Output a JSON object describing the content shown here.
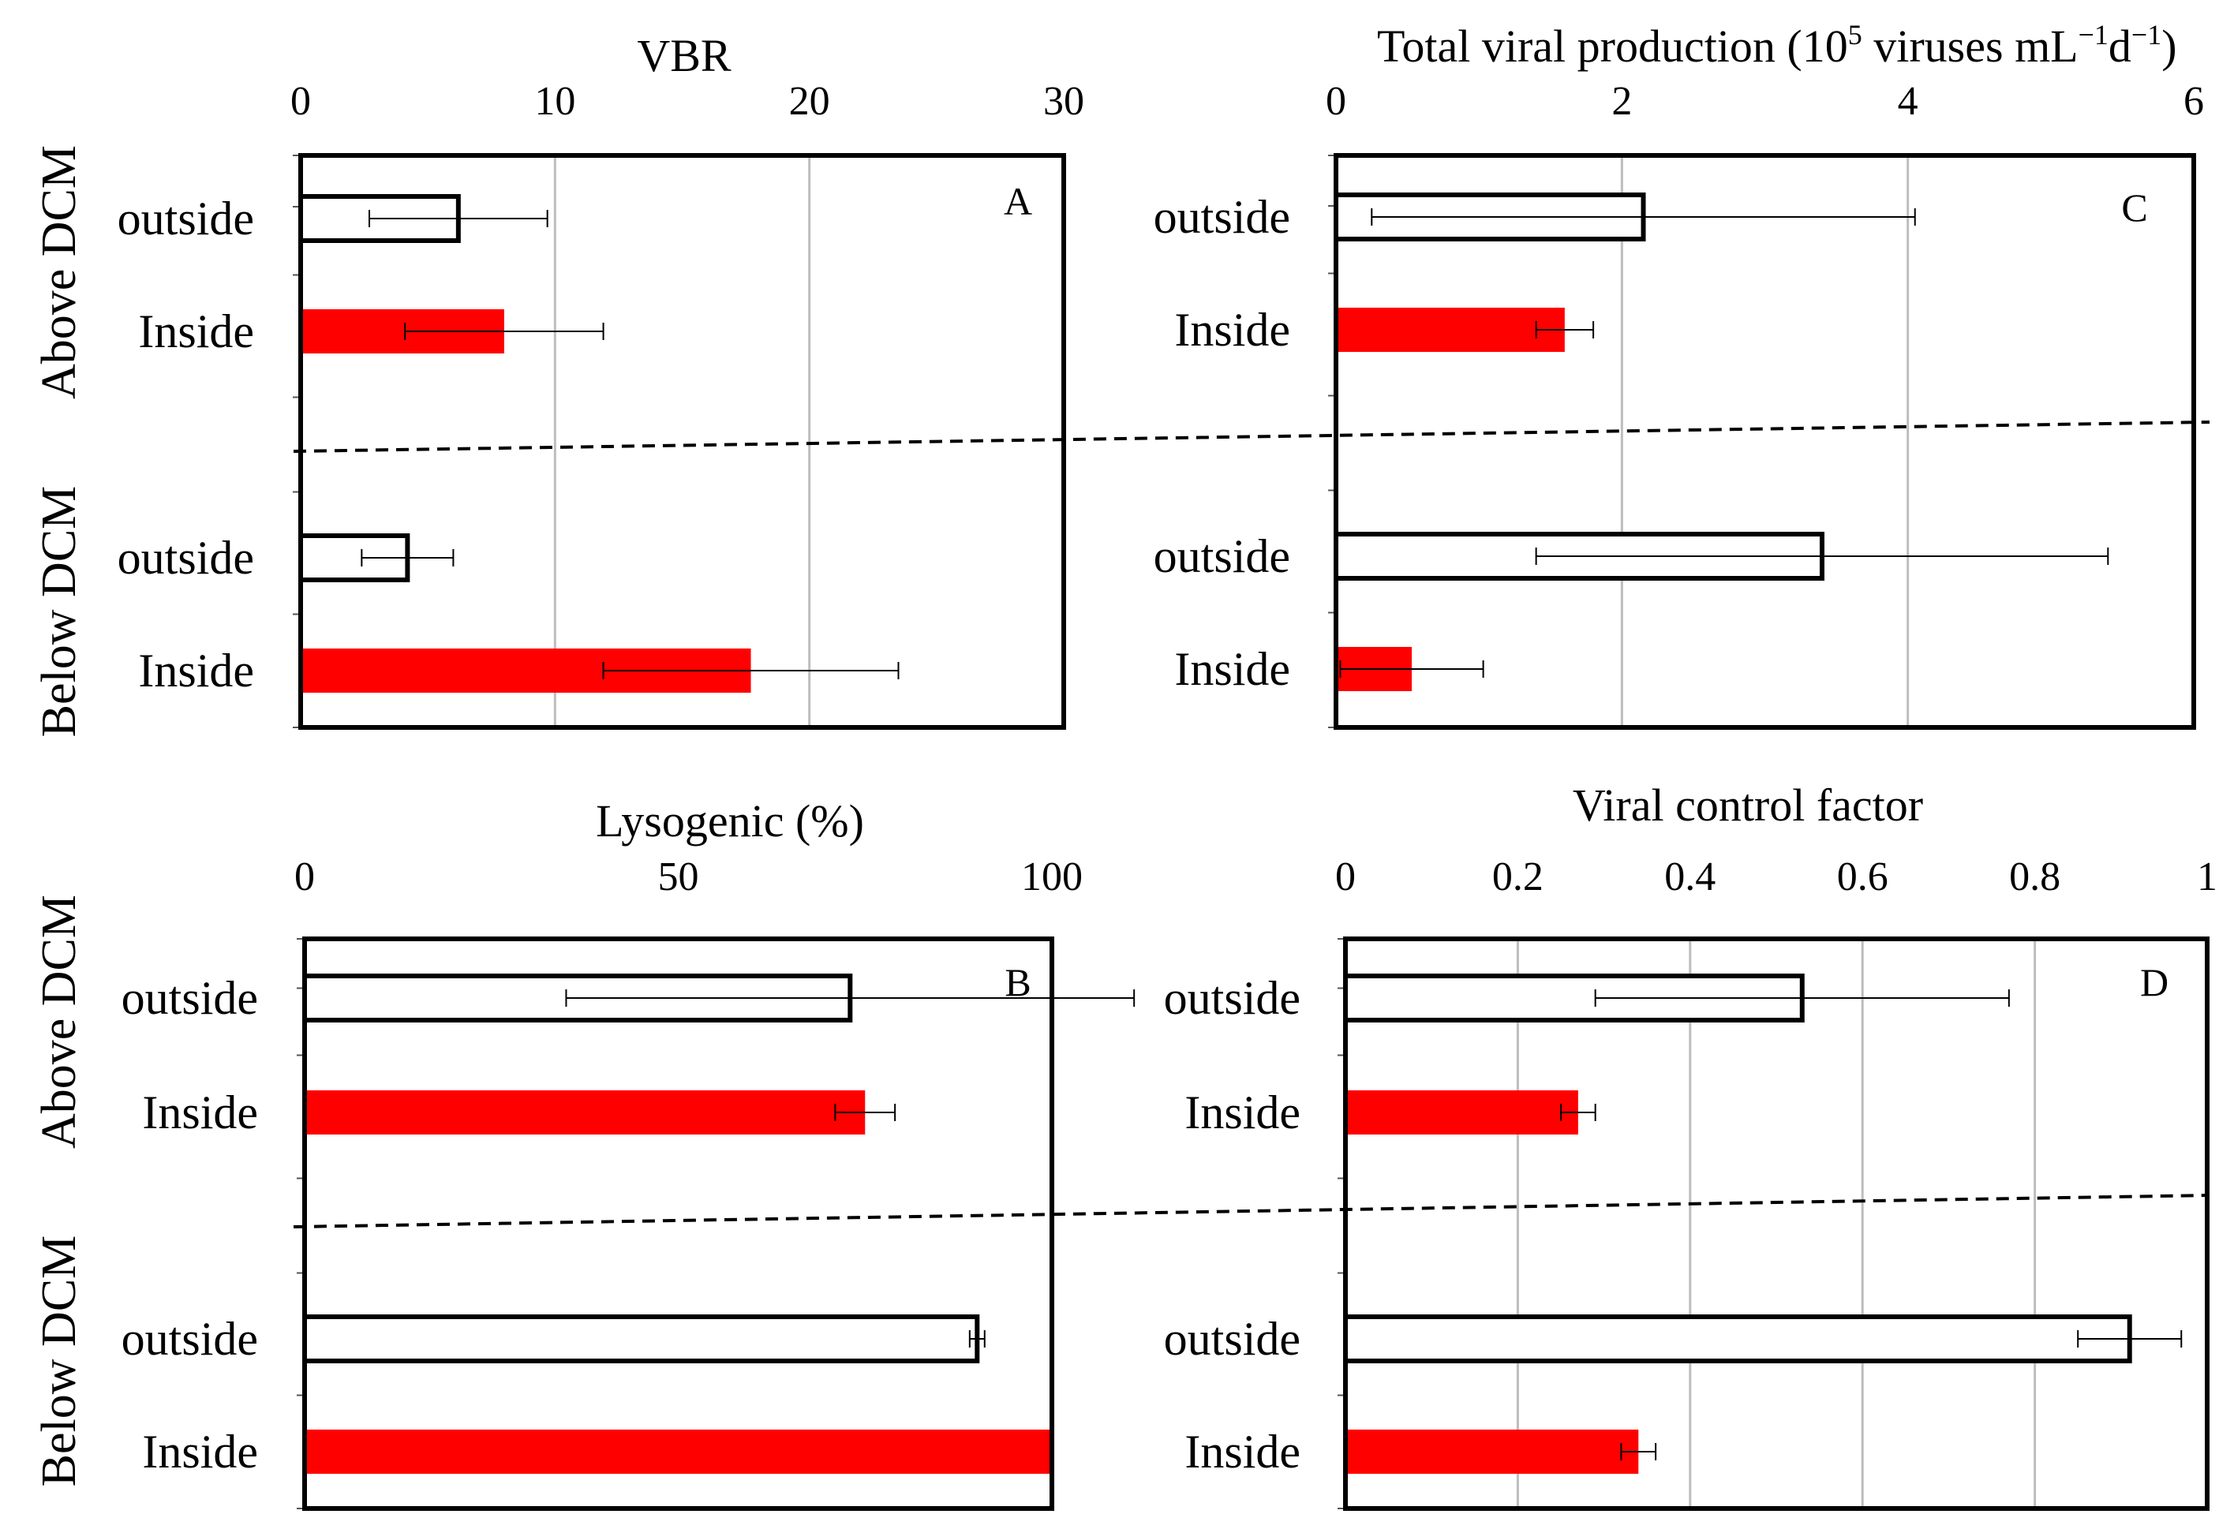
{
  "colors": {
    "inside": "#ff0000",
    "outside": "#ffffff",
    "grid": "#bdbdbd",
    "frame": "#000000"
  },
  "groups": [
    "Above DCM",
    "Below DCM"
  ],
  "chart_data": [
    {
      "id": "A",
      "type": "bar",
      "orientation": "horizontal",
      "letter": "A",
      "title": "VBR",
      "xlim": [
        0,
        30
      ],
      "ticks": [
        0,
        10,
        20,
        30
      ],
      "tick_labels": [
        "0",
        "10",
        "20",
        "30"
      ],
      "categories": [
        "outside",
        "Inside",
        "outside",
        "Inside"
      ],
      "values": [
        6.2,
        8.0,
        4.2,
        17.7
      ],
      "errors": [
        3.5,
        3.9,
        1.8,
        5.8
      ],
      "fills": [
        "outside",
        "inside",
        "outside",
        "inside"
      ],
      "grid": true
    },
    {
      "id": "C",
      "type": "bar",
      "orientation": "horizontal",
      "letter": "C",
      "title_main": "Total viral production (10",
      "title_sup1": "5",
      "title_mid": " viruses mL",
      "title_sup2": "−1",
      "title_mid2": "d",
      "title_sup3": "−1",
      "title_end": ")",
      "xlim": [
        0,
        6
      ],
      "ticks": [
        0,
        2,
        4,
        6
      ],
      "tick_labels": [
        "0",
        "2",
        "4",
        "6"
      ],
      "categories": [
        "outside",
        "Inside",
        "outside",
        "Inside"
      ],
      "values": [
        2.15,
        1.6,
        3.4,
        0.53
      ],
      "errors": [
        1.9,
        0.2,
        2.0,
        0.5
      ],
      "fills": [
        "outside",
        "inside",
        "outside",
        "inside"
      ],
      "grid": true
    },
    {
      "id": "B",
      "type": "bar",
      "orientation": "horizontal",
      "letter": "B",
      "title": "Lysogenic (%)",
      "xlim": [
        0,
        100
      ],
      "ticks": [
        0,
        50,
        100
      ],
      "tick_labels": [
        "0",
        "50",
        "100"
      ],
      "categories": [
        "outside",
        "Inside",
        "outside",
        "Inside"
      ],
      "values": [
        73,
        75,
        90,
        100
      ],
      "errors": [
        38,
        4,
        1,
        0
      ],
      "fills": [
        "outside",
        "inside",
        "outside",
        "inside"
      ],
      "grid": false
    },
    {
      "id": "D",
      "type": "bar",
      "orientation": "horizontal",
      "letter": "D",
      "title": "Viral control factor",
      "xlim": [
        0,
        1
      ],
      "ticks": [
        0,
        0.2,
        0.4,
        0.6,
        0.8,
        1
      ],
      "tick_labels": [
        "0",
        "0.2",
        "0.4",
        "0.6",
        "0.8",
        "1"
      ],
      "categories": [
        "outside",
        "Inside",
        "outside",
        "Inside"
      ],
      "values": [
        0.53,
        0.27,
        0.91,
        0.34
      ],
      "errors": [
        0.24,
        0.02,
        0.06,
        0.02
      ],
      "fills": [
        "outside",
        "inside",
        "outside",
        "inside"
      ],
      "grid": true
    }
  ]
}
